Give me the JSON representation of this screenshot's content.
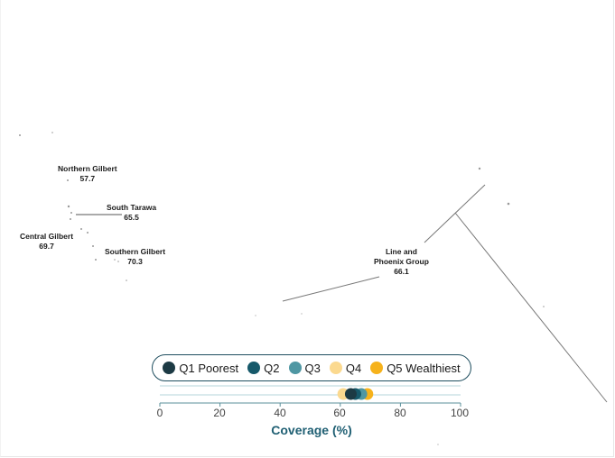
{
  "map": {
    "regions": [
      {
        "name": "Northern Gilbert",
        "value": "57.7"
      },
      {
        "name": "South Tarawa",
        "value": "65.5"
      },
      {
        "name": "Central Gilbert",
        "value": "69.7"
      },
      {
        "name": "Southern Gilbert",
        "value": "70.3"
      },
      {
        "name_line1": "Line and",
        "name_line2": "Phoenix Group",
        "value": "66.1"
      }
    ]
  },
  "legend": {
    "items": [
      {
        "label": "Q1 Poorest",
        "color": "#1c3a44"
      },
      {
        "label": "Q2",
        "color": "#16596a"
      },
      {
        "label": "Q3",
        "color": "#4f97a3"
      },
      {
        "label": "Q4",
        "color": "#fbd98f"
      },
      {
        "label": "Q5 Wealthiest",
        "color": "#f6b21b"
      }
    ]
  },
  "chart_data": {
    "type": "scatter",
    "xlabel": "Coverage (%)",
    "xlim": [
      0,
      100
    ],
    "xticks": [
      "0",
      "20",
      "40",
      "60",
      "80",
      "100"
    ],
    "series": [
      {
        "name": "Q1 Poorest",
        "x": 63.5
      },
      {
        "name": "Q2",
        "x": 65.0
      },
      {
        "name": "Q3",
        "x": 67.0
      },
      {
        "name": "Q4",
        "x": 61.0
      },
      {
        "name": "Q5 Wealthiest",
        "x": 69.0
      }
    ]
  }
}
